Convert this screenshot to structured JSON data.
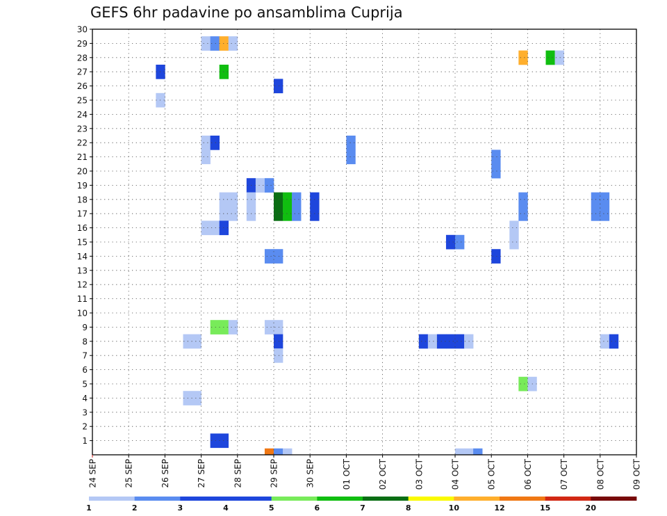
{
  "chart_data": {
    "type": "heatmap",
    "title": "GEFS 6hr padavine po ansamblima Cuprija",
    "y_ticks": [
      "1",
      "2",
      "3",
      "4",
      "5",
      "6",
      "7",
      "8",
      "9",
      "10",
      "11",
      "12",
      "13",
      "14",
      "15",
      "16",
      "17",
      "18",
      "19",
      "20",
      "21",
      "22",
      "23",
      "24",
      "25",
      "26",
      "27",
      "28",
      "29",
      "30"
    ],
    "x_ticks": [
      "24 SEP",
      "25 SEP",
      "26 SEP",
      "27 SEP",
      "28 SEP",
      "29 SEP",
      "30 SEP",
      "01 OCT",
      "02 OCT",
      "03 OCT",
      "04 OCT",
      "05 OCT",
      "06 OCT",
      "07 OCT",
      "08 OCT",
      "09 OCT"
    ],
    "grid": true,
    "colorbar": {
      "labels": [
        "1",
        "2",
        "3",
        "4",
        "5",
        "6",
        "7",
        "8",
        "10",
        "12",
        "15",
        "20"
      ],
      "colors": [
        "#b4c8f5",
        "#5a8cf0",
        "#1e46dc",
        "#1e46dc",
        "#78eb5a",
        "#10be10",
        "#0a6e14",
        "#fafa00",
        "#ffaf2d",
        "#f07814",
        "#d22814",
        "#780a0a"
      ]
    },
    "cells": [
      {
        "t": "27 SEP 00Z",
        "m": 29,
        "v": 1
      },
      {
        "t": "27 SEP 06Z",
        "m": 29,
        "v": 2
      },
      {
        "t": "27 SEP 12Z",
        "m": 29,
        "v": 10
      },
      {
        "t": "27 SEP 18Z",
        "m": 29,
        "v": 1
      },
      {
        "t": "05 OCT 18Z",
        "m": 28,
        "v": 10
      },
      {
        "t": "06 OCT 12Z",
        "m": 28,
        "v": 6
      },
      {
        "t": "06 OCT 18Z",
        "m": 28,
        "v": 1
      },
      {
        "t": "25 SEP 18Z",
        "m": 27,
        "v": 3
      },
      {
        "t": "27 SEP 12Z",
        "m": 27,
        "v": 6
      },
      {
        "t": "29 SEP 00Z",
        "m": 26,
        "v": 3
      },
      {
        "t": "25 SEP 18Z",
        "m": 25,
        "v": 1
      },
      {
        "t": "27 SEP 00Z",
        "m": 22,
        "v": 1
      },
      {
        "t": "27 SEP 06Z",
        "m": 22,
        "v": 4
      },
      {
        "t": "01 OCT 00Z",
        "m": 22,
        "v": 2
      },
      {
        "t": "27 SEP 00Z",
        "m": 21,
        "v": 1
      },
      {
        "t": "01 OCT 00Z",
        "m": 21,
        "v": 2
      },
      {
        "t": "05 OCT 00Z",
        "m": 21,
        "v": 2
      },
      {
        "t": "05 OCT 00Z",
        "m": 20,
        "v": 2
      },
      {
        "t": "28 SEP 06Z",
        "m": 19,
        "v": 3
      },
      {
        "t": "28 SEP 12Z",
        "m": 19,
        "v": 1
      },
      {
        "t": "28 SEP 18Z",
        "m": 19,
        "v": 2
      },
      {
        "t": "27 SEP 12Z",
        "m": 18,
        "v": 1
      },
      {
        "t": "27 SEP 18Z",
        "m": 18,
        "v": 1
      },
      {
        "t": "28 SEP 06Z",
        "m": 18,
        "v": 1
      },
      {
        "t": "29 SEP 00Z",
        "m": 18,
        "v": 7
      },
      {
        "t": "29 SEP 06Z",
        "m": 18,
        "v": 6
      },
      {
        "t": "29 SEP 12Z",
        "m": 18,
        "v": 2
      },
      {
        "t": "30 SEP 00Z",
        "m": 18,
        "v": 3
      },
      {
        "t": "05 OCT 18Z",
        "m": 18,
        "v": 2
      },
      {
        "t": "07 OCT 18Z",
        "m": 18,
        "v": 2
      },
      {
        "t": "08 OCT 00Z",
        "m": 18,
        "v": 2
      },
      {
        "t": "27 SEP 12Z",
        "m": 17,
        "v": 1
      },
      {
        "t": "27 SEP 18Z",
        "m": 17,
        "v": 1
      },
      {
        "t": "28 SEP 06Z",
        "m": 17,
        "v": 1
      },
      {
        "t": "29 SEP 00Z",
        "m": 17,
        "v": 7
      },
      {
        "t": "29 SEP 06Z",
        "m": 17,
        "v": 6
      },
      {
        "t": "29 SEP 12Z",
        "m": 17,
        "v": 2
      },
      {
        "t": "30 SEP 00Z",
        "m": 17,
        "v": 3
      },
      {
        "t": "05 OCT 18Z",
        "m": 17,
        "v": 2
      },
      {
        "t": "07 OCT 18Z",
        "m": 17,
        "v": 2
      },
      {
        "t": "08 OCT 00Z",
        "m": 17,
        "v": 2
      },
      {
        "t": "27 SEP 00Z",
        "m": 16,
        "v": 1
      },
      {
        "t": "27 SEP 06Z",
        "m": 16,
        "v": 1
      },
      {
        "t": "27 SEP 12Z",
        "m": 16,
        "v": 3
      },
      {
        "t": "05 OCT 12Z",
        "m": 16,
        "v": 1
      },
      {
        "t": "03 OCT 18Z",
        "m": 15,
        "v": 4
      },
      {
        "t": "04 OCT 00Z",
        "m": 15,
        "v": 2
      },
      {
        "t": "05 OCT 12Z",
        "m": 15,
        "v": 1
      },
      {
        "t": "28 SEP 18Z",
        "m": 14,
        "v": 2
      },
      {
        "t": "29 SEP 00Z",
        "m": 14,
        "v": 2
      },
      {
        "t": "05 OCT 00Z",
        "m": 14,
        "v": 4
      },
      {
        "t": "27 SEP 06Z",
        "m": 9,
        "v": 5
      },
      {
        "t": "27 SEP 12Z",
        "m": 9,
        "v": 5
      },
      {
        "t": "27 SEP 18Z",
        "m": 9,
        "v": 1
      },
      {
        "t": "28 SEP 18Z",
        "m": 9,
        "v": 1
      },
      {
        "t": "29 SEP 00Z",
        "m": 9,
        "v": 1
      },
      {
        "t": "26 SEP 12Z",
        "m": 8,
        "v": 1
      },
      {
        "t": "26 SEP 18Z",
        "m": 8,
        "v": 1
      },
      {
        "t": "29 SEP 00Z",
        "m": 8,
        "v": 3
      },
      {
        "t": "03 OCT 00Z",
        "m": 8,
        "v": 3
      },
      {
        "t": "03 OCT 06Z",
        "m": 8,
        "v": 1
      },
      {
        "t": "03 OCT 12Z",
        "m": 8,
        "v": 3
      },
      {
        "t": "03 OCT 18Z",
        "m": 8,
        "v": 4
      },
      {
        "t": "04 OCT 00Z",
        "m": 8,
        "v": 3
      },
      {
        "t": "04 OCT 06Z",
        "m": 8,
        "v": 1
      },
      {
        "t": "08 OCT 00Z",
        "m": 8,
        "v": 1
      },
      {
        "t": "08 OCT 06Z",
        "m": 8,
        "v": 3
      },
      {
        "t": "29 SEP 00Z",
        "m": 7,
        "v": 1
      },
      {
        "t": "05 OCT 18Z",
        "m": 5,
        "v": 5
      },
      {
        "t": "06 OCT 00Z",
        "m": 5,
        "v": 1
      },
      {
        "t": "26 SEP 12Z",
        "m": 4,
        "v": 1
      },
      {
        "t": "26 SEP 18Z",
        "m": 4,
        "v": 1
      },
      {
        "t": "27 SEP 06Z",
        "m": 1,
        "v": 4
      },
      {
        "t": "27 SEP 12Z",
        "m": 1,
        "v": 3
      },
      {
        "t": "28 SEP 18Z",
        "m": 0,
        "v": 12
      },
      {
        "t": "29 SEP 00Z",
        "m": 0,
        "v": 2
      },
      {
        "t": "29 SEP 06Z",
        "m": 0,
        "v": 1
      },
      {
        "t": "04 OCT 00Z",
        "m": 0,
        "v": 1
      },
      {
        "t": "04 OCT 06Z",
        "m": 0,
        "v": 1
      },
      {
        "t": "04 OCT 12Z",
        "m": 0,
        "v": 2
      }
    ]
  }
}
